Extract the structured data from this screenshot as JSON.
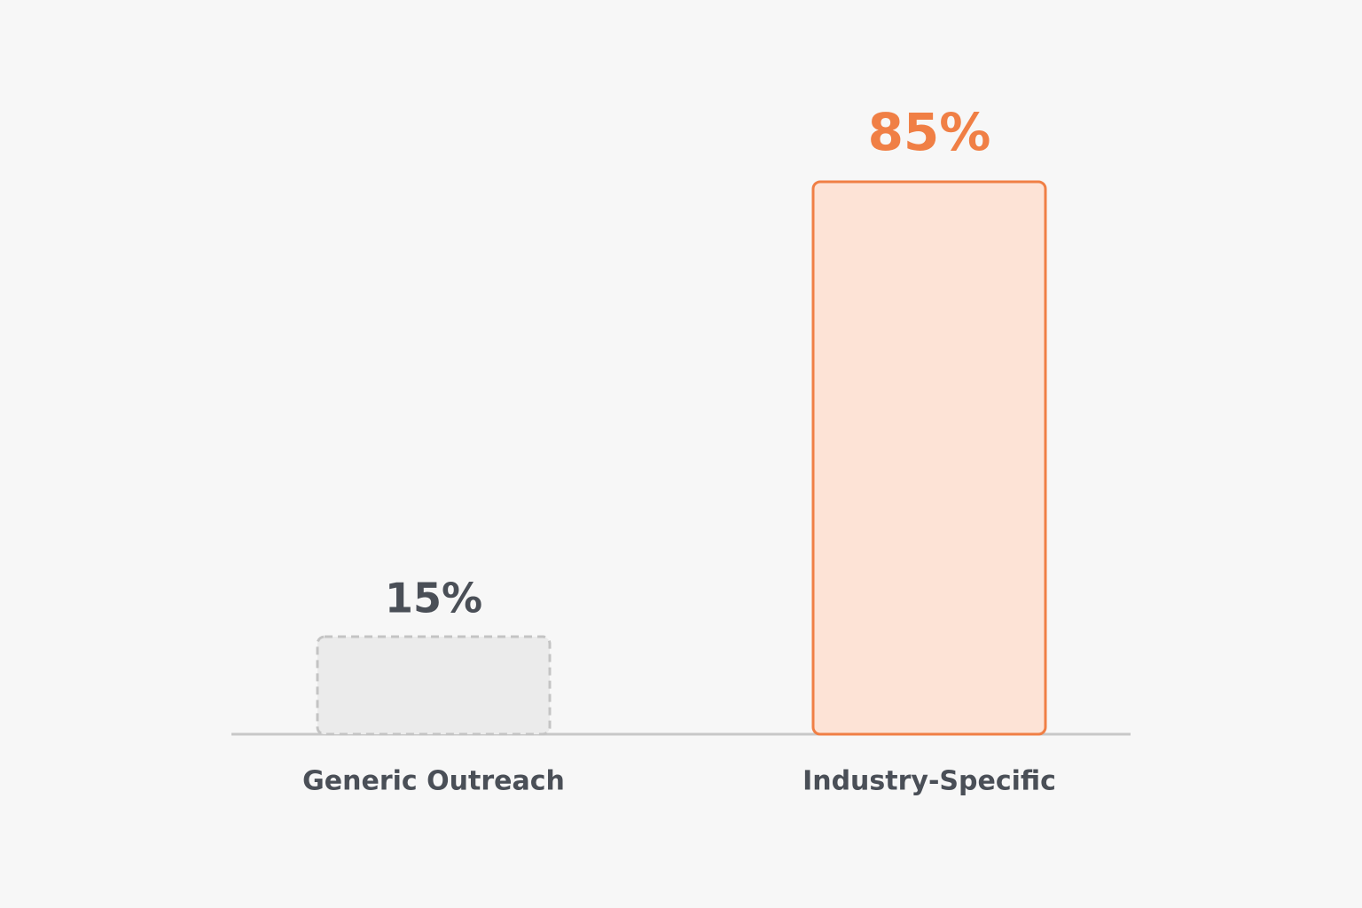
{
  "chart_data": {
    "type": "bar",
    "categories": [
      "Generic Outreach",
      "Industry-Specific"
    ],
    "values": [
      15,
      85
    ],
    "value_labels": [
      "15%",
      "85%"
    ],
    "colors": [
      "#ebebeb",
      "#fde3d6"
    ],
    "edge_colors": [
      "#c4c4c4",
      "#f07f45"
    ],
    "edge_styles": [
      "dashed",
      "solid"
    ],
    "label_colors": [
      "#4a4f57",
      "#f07f45"
    ]
  }
}
